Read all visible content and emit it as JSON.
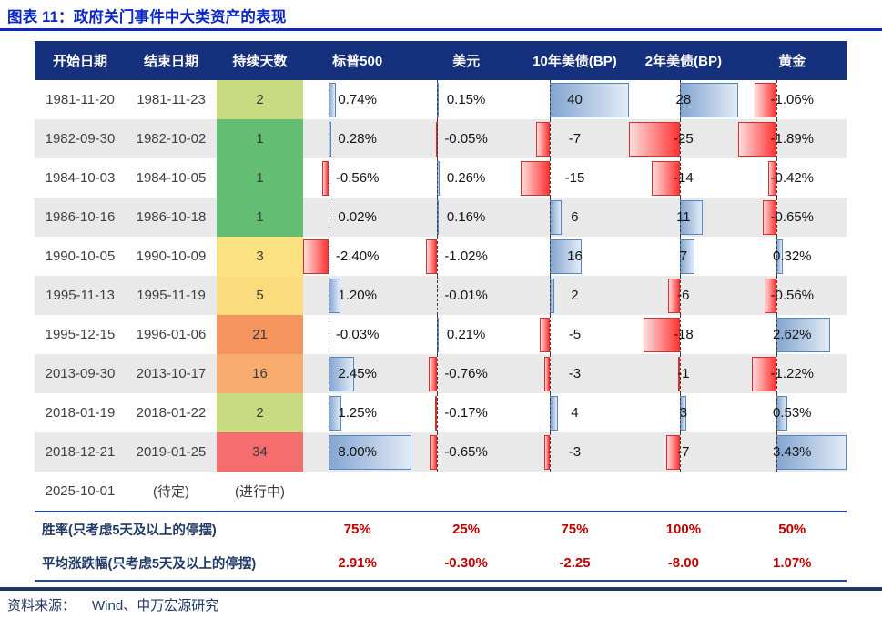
{
  "title": "图表 11：政府关门事件中大类资产的表现",
  "source": {
    "prefix": "资料来源：",
    "text": "Wind、申万宏源研究"
  },
  "colors": {
    "accent_blue": "#0C27C4",
    "header_bg": "#15317E",
    "stripe_gray": "#E9E9E9",
    "summary_line_blue": "#2443B5",
    "footer_navy": "#1F3864",
    "value_red": "#C00000",
    "bar_positive": "#84A6D1",
    "bar_positive_border": "#5586C2",
    "bar_negative": "#FF3535",
    "bar_negative_border": "#D62F2F"
  },
  "table": {
    "pending_row": {
      "start": "2025-10-01",
      "end": "(待定)",
      "days": "(进行中)"
    },
    "summary": [
      {
        "label": "胜率(只考虑5天及以上的停摆)",
        "values": [
          "75%",
          "25%",
          "75%",
          "100%",
          "50%"
        ]
      },
      {
        "label": "平均涨跌幅(只考虑5天及以上的停摆)",
        "values": [
          "2.91%",
          "-0.30%",
          "-2.25",
          "-8.00",
          "1.07%"
        ]
      }
    ]
  },
  "chart_data": {
    "type": "table",
    "title": "图表 11：政府关门事件中大类资产的表现",
    "columns": [
      "开始日期",
      "结束日期",
      "持续天数",
      "标普500",
      "美元",
      "10年美债(BP)",
      "2年美债(BP)",
      "黄金"
    ],
    "value_columns": [
      {
        "key": "sp500",
        "label": "标普500",
        "format": "pct",
        "vmin": -2.4,
        "vmax": 8.0
      },
      {
        "key": "usd",
        "label": "美元",
        "format": "pct",
        "vmin": -2.4,
        "vmax": 8.0
      },
      {
        "key": "ust10y",
        "label": "10年美债(BP)",
        "format": "int",
        "vmin": -15,
        "vmax": 40
      },
      {
        "key": "ust2y",
        "label": "2年美债(BP)",
        "format": "int",
        "vmin": -25,
        "vmax": 28
      },
      {
        "key": "gold",
        "label": "黄金",
        "format": "pct",
        "vmin": -1.89,
        "vmax": 3.43
      }
    ],
    "rows": [
      {
        "start": "1981-11-20",
        "end": "1981-11-23",
        "days": "2",
        "days_color": "#C9DB80",
        "values": {
          "sp500": 0.74,
          "usd": 0.15,
          "ust10y": 40,
          "ust2y": 28,
          "gold": -1.06
        }
      },
      {
        "start": "1982-09-30",
        "end": "1982-10-02",
        "days": "1",
        "days_color": "#63BD72",
        "values": {
          "sp500": 0.28,
          "usd": -0.05,
          "ust10y": -7,
          "ust2y": -25,
          "gold": -1.89
        }
      },
      {
        "start": "1984-10-03",
        "end": "1984-10-05",
        "days": "1",
        "days_color": "#63BD72",
        "values": {
          "sp500": -0.56,
          "usd": 0.26,
          "ust10y": -15,
          "ust2y": -14,
          "gold": -0.42
        }
      },
      {
        "start": "1986-10-16",
        "end": "1986-10-18",
        "days": "1",
        "days_color": "#63BD72",
        "values": {
          "sp500": 0.02,
          "usd": 0.16,
          "ust10y": 6,
          "ust2y": 11,
          "gold": -0.65
        }
      },
      {
        "start": "1990-10-05",
        "end": "1990-10-09",
        "days": "3",
        "days_color": "#FBE17F",
        "values": {
          "sp500": -2.4,
          "usd": -1.02,
          "ust10y": 16,
          "ust2y": 7,
          "gold": 0.32
        }
      },
      {
        "start": "1995-11-13",
        "end": "1995-11-19",
        "days": "5",
        "days_color": "#FBDC7D",
        "values": {
          "sp500": 1.2,
          "usd": -0.01,
          "ust10y": 2,
          "ust2y": -6,
          "gold": -0.56
        }
      },
      {
        "start": "1995-12-15",
        "end": "1996-01-06",
        "days": "21",
        "days_color": "#F5945C",
        "values": {
          "sp500": -0.03,
          "usd": 0.21,
          "ust10y": -5,
          "ust2y": -18,
          "gold": 2.62
        }
      },
      {
        "start": "2013-09-30",
        "end": "2013-10-17",
        "days": "16",
        "days_color": "#F9AB6E",
        "values": {
          "sp500": 2.45,
          "usd": -0.76,
          "ust10y": -3,
          "ust2y": -1,
          "gold": -1.22
        }
      },
      {
        "start": "2018-01-19",
        "end": "2018-01-22",
        "days": "2",
        "days_color": "#C9DB80",
        "values": {
          "sp500": 1.25,
          "usd": -0.17,
          "ust10y": 4,
          "ust2y": 3,
          "gold": 0.53
        }
      },
      {
        "start": "2018-12-21",
        "end": "2019-01-25",
        "days": "34",
        "days_color": "#F66D6D",
        "values": {
          "sp500": 8.0,
          "usd": -0.65,
          "ust10y": -3,
          "ust2y": -7,
          "gold": 3.43
        }
      }
    ]
  }
}
